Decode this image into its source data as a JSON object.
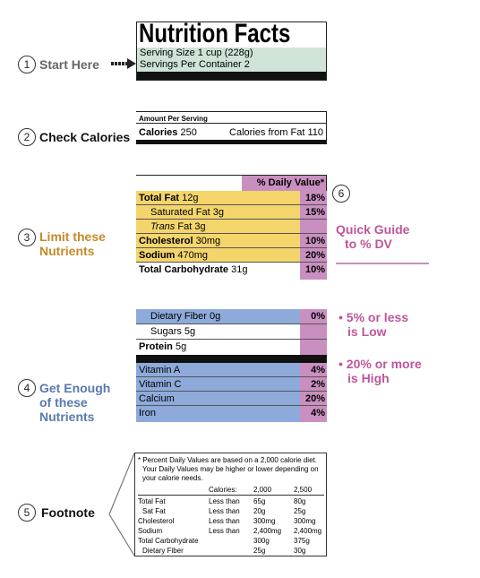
{
  "steps": [
    {
      "number": "1",
      "lines": [
        "Start Here"
      ]
    },
    {
      "number": "2",
      "lines": [
        "Check Calories"
      ]
    },
    {
      "number": "3",
      "lines": [
        "Limit these",
        "Nutrients"
      ]
    },
    {
      "number": "4",
      "lines": [
        "Get Enough",
        "of these",
        "Nutrients"
      ]
    },
    {
      "number": "5",
      "lines": [
        "Footnote"
      ]
    },
    {
      "number": "6",
      "lines": [
        "Quick Guide",
        "to % DV"
      ]
    }
  ],
  "header": {
    "title": "Nutrition Facts",
    "serving_size": "Serving Size 1 cup (228g)",
    "servings": "Servings Per Container 2"
  },
  "calories": {
    "heading": "Amount Per Serving",
    "label": "Calories",
    "value": "250",
    "from_fat": "Calories from Fat 110"
  },
  "limit": {
    "dv_header": "% Daily Value*",
    "rows": [
      {
        "name": "Total Fat",
        "amount": "12g",
        "dv": "18%"
      },
      {
        "name": "Saturated Fat",
        "amount": "3g",
        "dv": "15%"
      },
      {
        "name": "Trans",
        "amount": "Fat 3g"
      },
      {
        "name": "Cholesterol",
        "amount": "30mg",
        "dv": "10%"
      },
      {
        "name": "Sodium",
        "amount": "470mg",
        "dv": "20%"
      },
      {
        "name": "Total Carbohydrate",
        "amount": "31g",
        "dv": "10%"
      }
    ]
  },
  "enough": {
    "rows": [
      {
        "name": "Dietary Fiber",
        "amount": "0g",
        "dv": "0%"
      },
      {
        "name": "Sugars",
        "amount": "5g"
      },
      {
        "name": "Protein",
        "amount": "5g"
      }
    ],
    "vitamins": [
      {
        "name": "Vitamin A",
        "dv": "4%"
      },
      {
        "name": "Vitamin C",
        "dv": "2%"
      },
      {
        "name": "Calcium",
        "dv": "20%"
      },
      {
        "name": "Iron",
        "dv": "4%"
      }
    ]
  },
  "guide": [
    [
      "• 5% or less",
      "is Low"
    ],
    [
      "• 20% or more",
      "is High"
    ]
  ],
  "footnote": {
    "lines": [
      "* Percent Daily Values are based on a 2,000 calorie diet.",
      "Your Daily Values may be higher or lower depending on",
      "your calorie needs."
    ],
    "header": {
      "label": "Calories:",
      "cols": [
        "2,000",
        "2,500"
      ]
    },
    "rows": [
      {
        "name": "Total Fat",
        "qualifier": "Less than",
        "values": [
          "65g",
          "80g"
        ]
      },
      {
        "name": "Sat Fat",
        "qualifier": "Less than",
        "values": [
          "20g",
          "25g"
        ]
      },
      {
        "name": "Cholesterol",
        "qualifier": "Less than",
        "values": [
          "300mg",
          "300mg"
        ]
      },
      {
        "name": "Sodium",
        "qualifier": "Less than",
        "values": [
          "2,400mg",
          "2,400mg"
        ]
      },
      {
        "name": "Total Carbohydrate",
        "values": [
          "300g",
          "375g"
        ]
      },
      {
        "name": "Dietary Fiber",
        "values": [
          "25g",
          "30g"
        ]
      }
    ]
  }
}
